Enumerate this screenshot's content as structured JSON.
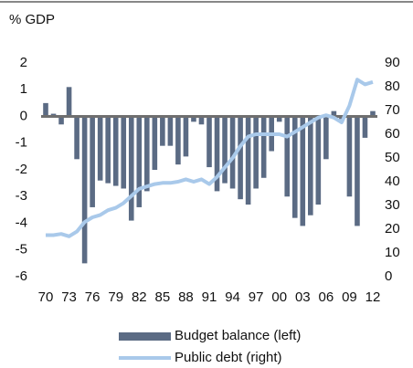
{
  "chart_data": {
    "type": "bar_line",
    "y_label": "% GDP",
    "categories": [
      "70",
      null,
      null,
      "73",
      null,
      null,
      "76",
      null,
      null,
      "79",
      null,
      null,
      "82",
      null,
      null,
      "85",
      null,
      null,
      "88",
      null,
      null,
      "91",
      null,
      null,
      "94",
      null,
      null,
      "97",
      null,
      null,
      "00",
      null,
      null,
      "03",
      null,
      null,
      "06",
      null,
      null,
      "09",
      null,
      null,
      "12"
    ],
    "series": [
      {
        "name": "Budget balance (left)",
        "type": "bar",
        "axis": "y",
        "color": "#5b6b84",
        "values": [
          0.5,
          0.1,
          -0.3,
          1.1,
          -1.6,
          -5.5,
          -3.4,
          -2.4,
          -2.5,
          -2.6,
          -2.7,
          -3.9,
          -3.4,
          -2.8,
          -2.0,
          -1.1,
          -1.1,
          -1.8,
          -1.5,
          -0.2,
          -0.3,
          -1.9,
          -2.8,
          -2.5,
          -2.7,
          -3.1,
          -3.3,
          -2.7,
          -2.3,
          -1.3,
          -0.2,
          -3.0,
          -3.8,
          -4.1,
          -3.7,
          -3.3,
          -1.6,
          0.2,
          -0.1,
          -3.0,
          -4.1,
          -0.8,
          0.2
        ]
      },
      {
        "name": "Public debt (right)",
        "type": "line",
        "axis": "y2",
        "color": "#a9c9ea",
        "values": [
          17.5,
          17.5,
          18,
          17,
          19,
          23,
          25,
          26,
          28,
          29,
          31,
          34,
          37,
          38,
          39,
          39.5,
          39.5,
          40,
          41,
          40,
          41,
          39,
          42,
          46,
          50,
          55,
          59,
          60,
          60,
          60,
          60,
          59,
          61,
          63,
          65,
          67,
          68,
          67,
          65,
          72,
          83,
          81,
          82
        ]
      }
    ],
    "ylim": [
      -6,
      2
    ],
    "yticks": [
      -6,
      -5,
      -4,
      -3,
      -2,
      -1,
      0,
      1,
      2
    ],
    "y2lim": [
      0,
      90
    ],
    "y2ticks": [
      0,
      10,
      20,
      30,
      40,
      50,
      60,
      70,
      80,
      90
    ],
    "grid": false,
    "legend": "bottom"
  }
}
